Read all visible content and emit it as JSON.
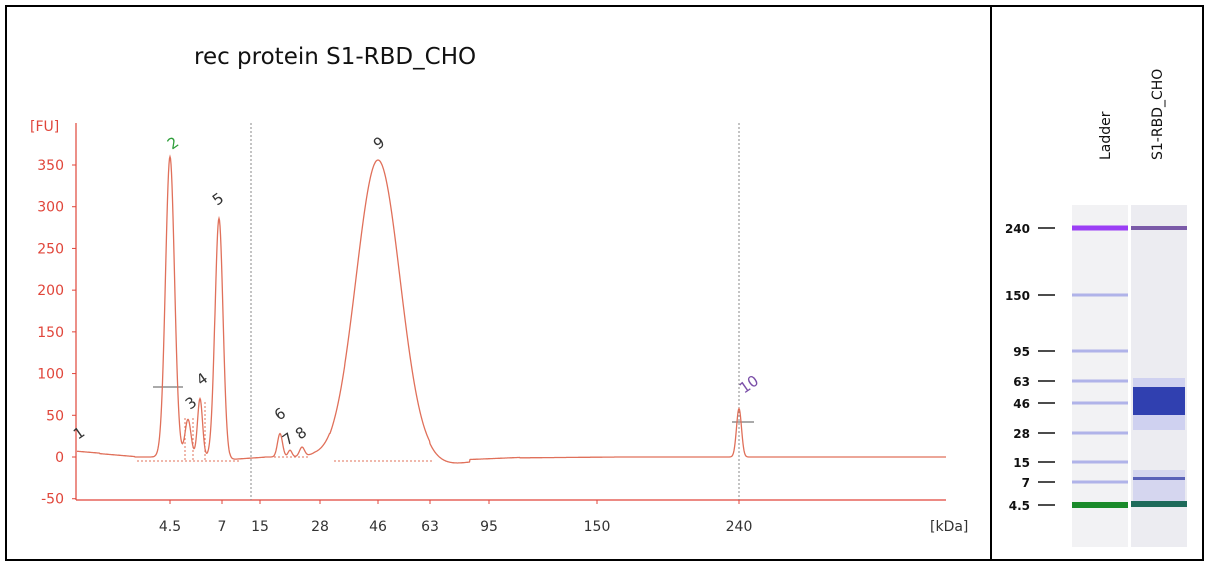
{
  "title": "rec protein S1-RBD_CHO",
  "chart_data": {
    "type": "line",
    "title": "rec protein S1-RBD_CHO",
    "ylabel": "[FU]",
    "xlabel": "[kDa]",
    "ylim": [
      -50,
      375
    ],
    "yticks": [
      -50,
      0,
      50,
      100,
      150,
      200,
      250,
      300,
      350
    ],
    "xtick_labels": [
      "4.5",
      "7",
      "15",
      "28",
      "46",
      "63",
      "95",
      "150",
      "240"
    ],
    "line_color": "#e0705a",
    "axis_color": "#e0453a",
    "peaks": [
      {
        "label": "1",
        "x": "",
        "fu": 7,
        "color": "#333333"
      },
      {
        "label": "2",
        "x": "4.5",
        "fu": 360,
        "color": "#2e9e3a"
      },
      {
        "label": "3",
        "x": "",
        "fu": 47,
        "color": "#333333"
      },
      {
        "label": "4",
        "x": "",
        "fu": 73,
        "color": "#333333"
      },
      {
        "label": "5",
        "x": "7",
        "fu": 290,
        "color": "#333333"
      },
      {
        "label": "6",
        "x": "",
        "fu": 30,
        "color": "#333333"
      },
      {
        "label": "7",
        "x": "",
        "fu": 10,
        "color": "#333333"
      },
      {
        "label": "8",
        "x": "",
        "fu": 13,
        "color": "#333333"
      },
      {
        "label": "9",
        "x": "46",
        "fu": 360,
        "color": "#333333"
      },
      {
        "label": "10",
        "x": "240",
        "fu": 58,
        "color": "#7a4ea8"
      }
    ]
  },
  "gel": {
    "lane_labels": [
      "Ladder",
      "S1-RBD_CHO"
    ],
    "markers": [
      "240",
      "150",
      "95",
      "63",
      "46",
      "28",
      "15",
      "7",
      "4.5"
    ],
    "colors": {
      "upper_marker": "#9b3ff5",
      "lower_marker": "#1a8a2a",
      "band": "#7a80e0",
      "sample_upper": "#7a5aa8"
    }
  }
}
